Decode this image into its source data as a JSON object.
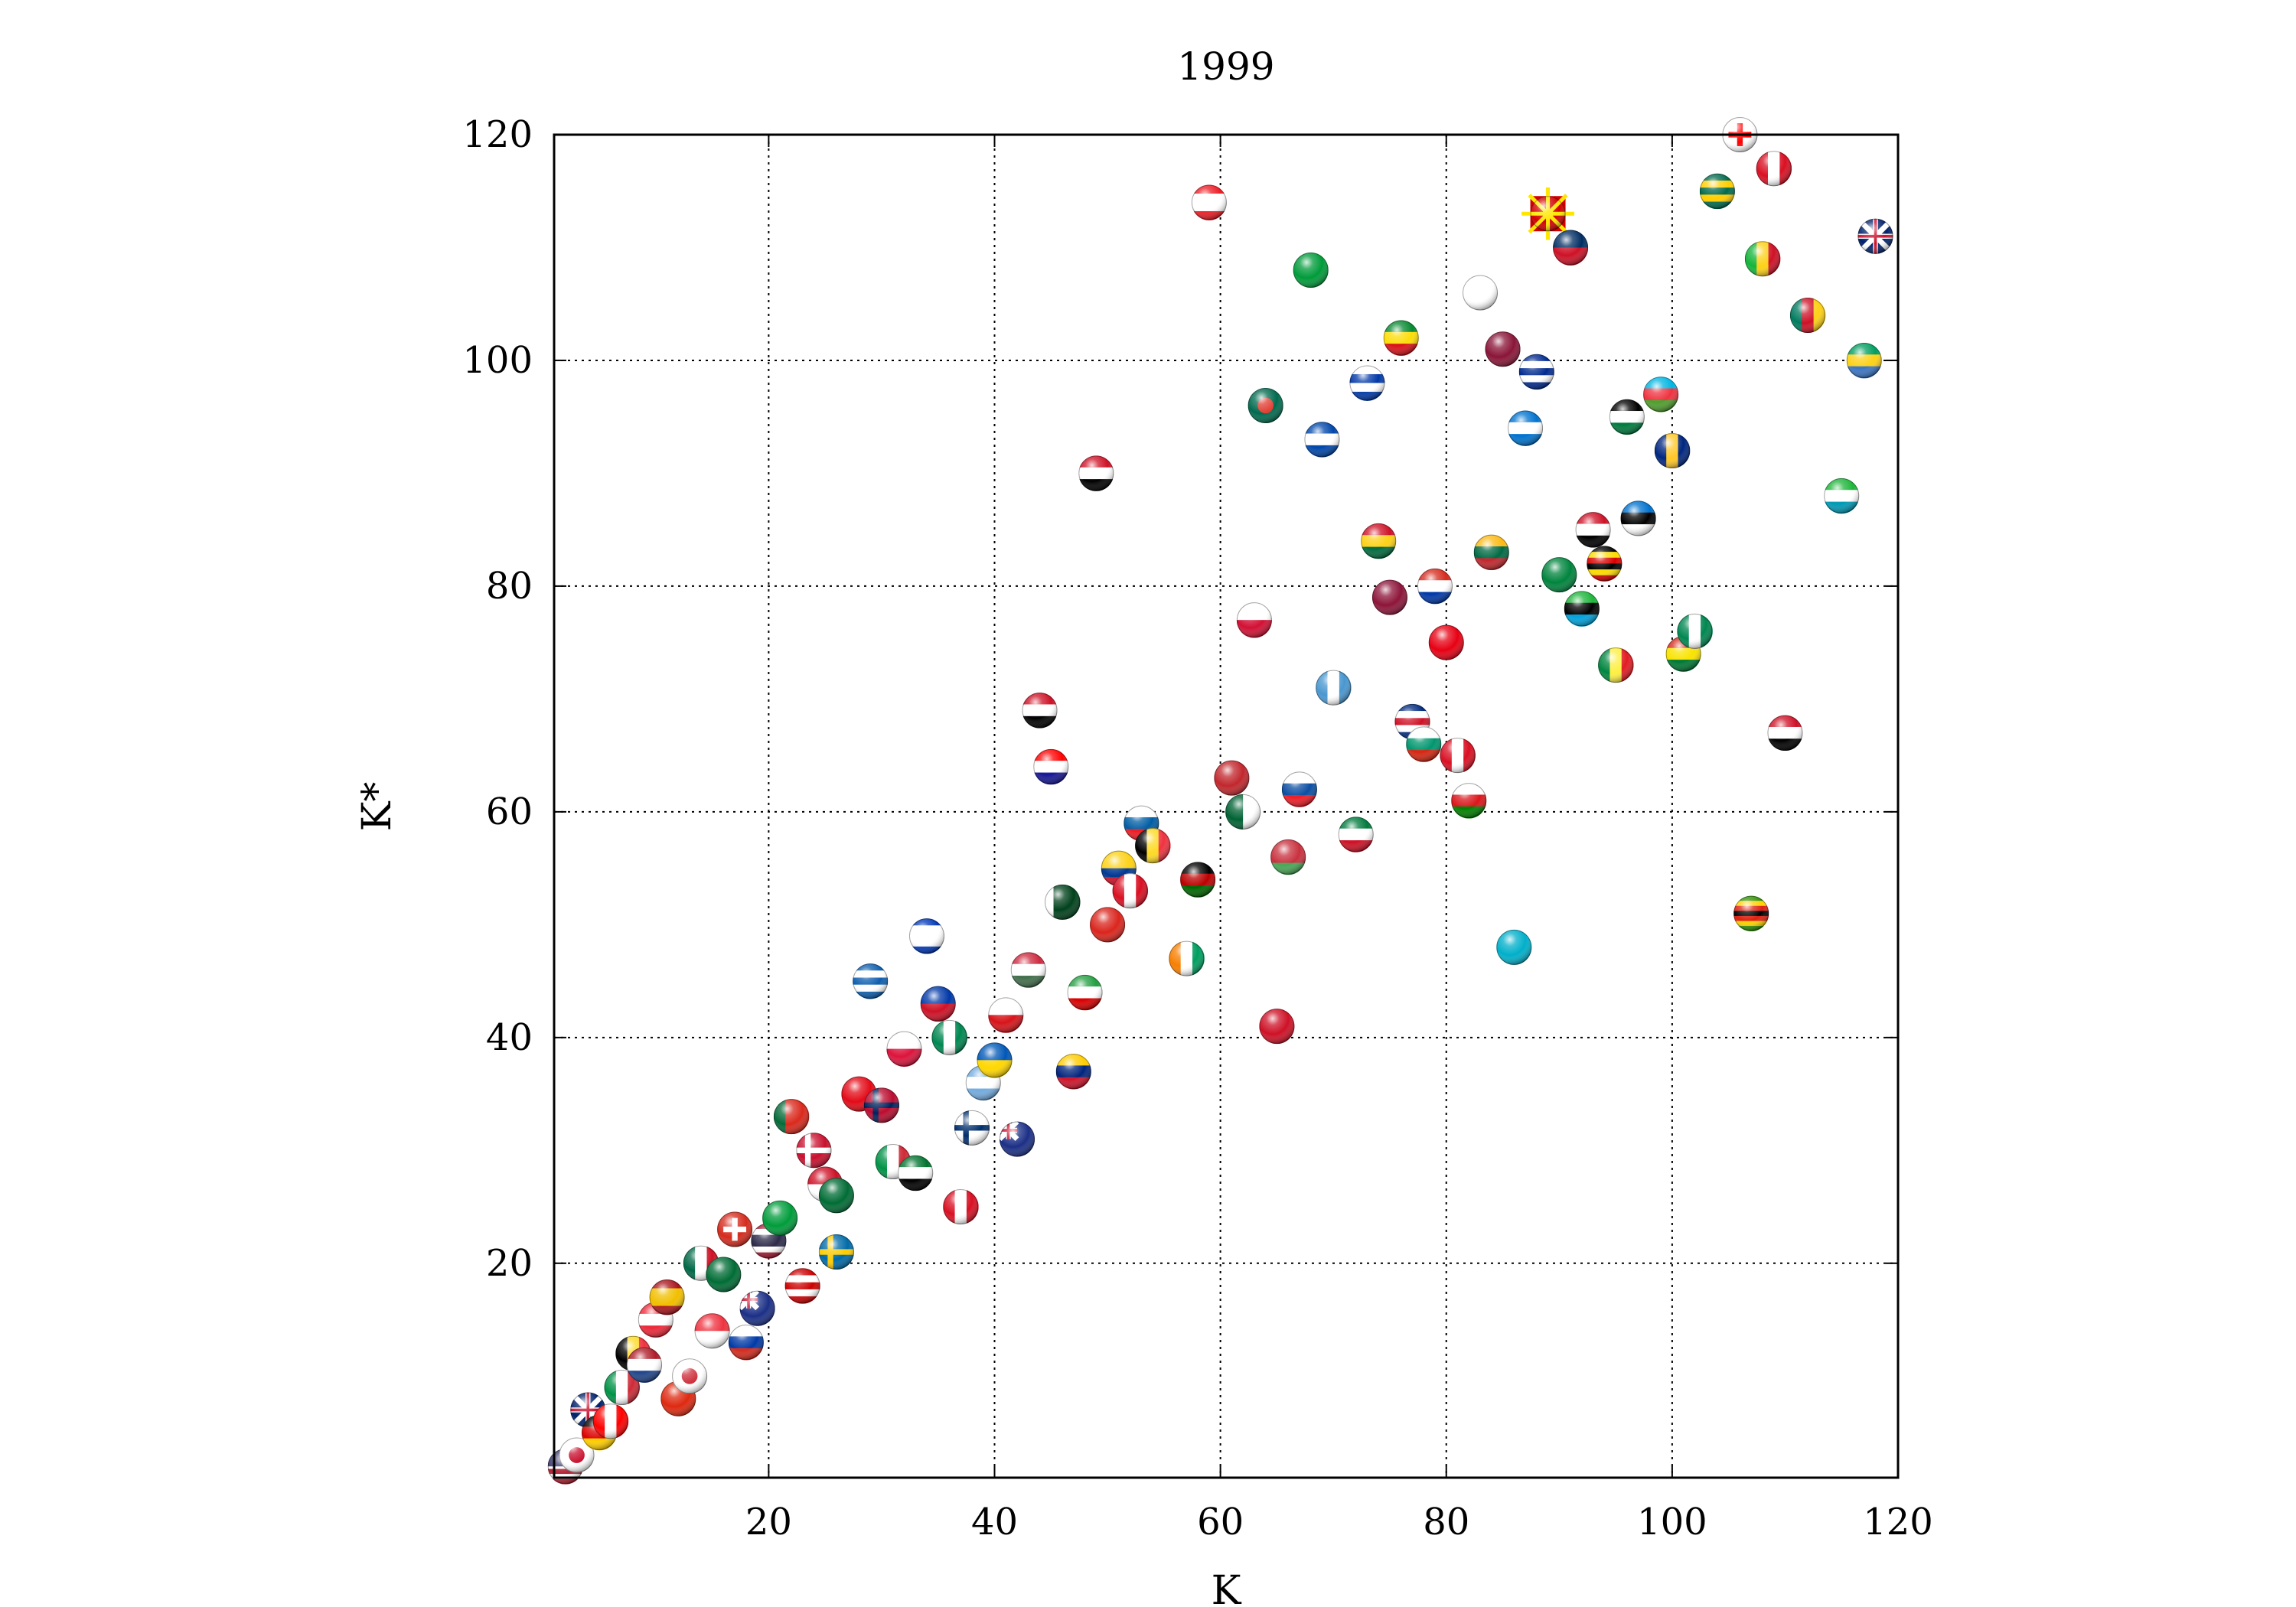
{
  "chart_data": {
    "type": "scatter",
    "title": "1999",
    "xlabel": "K",
    "ylabel": "K*",
    "xlim": [
      1,
      120
    ],
    "ylim": [
      1,
      120
    ],
    "xticks": [
      20,
      40,
      60,
      80,
      100,
      120
    ],
    "yticks": [
      20,
      40,
      60,
      80,
      100,
      120
    ],
    "grid": true,
    "marker": "country flag spheres",
    "points": [
      {
        "x": 2,
        "y": 2,
        "flag": "usa"
      },
      {
        "x": 3,
        "y": 3,
        "flag": "japan"
      },
      {
        "x": 4,
        "y": 7,
        "flag": "uk"
      },
      {
        "x": 5,
        "y": 5,
        "flag": "germany"
      },
      {
        "x": 6,
        "y": 6,
        "flag": "canada"
      },
      {
        "x": 7,
        "y": 9,
        "flag": "italy"
      },
      {
        "x": 8,
        "y": 12,
        "flag": "belgium"
      },
      {
        "x": 9,
        "y": 11,
        "flag": "netherlands"
      },
      {
        "x": 10,
        "y": 15,
        "flag": "austria"
      },
      {
        "x": 11,
        "y": 17,
        "flag": "spain"
      },
      {
        "x": 12,
        "y": 8,
        "flag": "china"
      },
      {
        "x": 13,
        "y": 10,
        "flag": "south-korea"
      },
      {
        "x": 14,
        "y": 20,
        "flag": "mexico"
      },
      {
        "x": 15,
        "y": 14,
        "flag": "singapore"
      },
      {
        "x": 16,
        "y": 19,
        "flag": "saudi-arabia"
      },
      {
        "x": 17,
        "y": 23,
        "flag": "switzerland"
      },
      {
        "x": 18,
        "y": 13,
        "flag": "russia"
      },
      {
        "x": 19,
        "y": 16,
        "flag": "australia"
      },
      {
        "x": 20,
        "y": 22,
        "flag": "thailand"
      },
      {
        "x": 21,
        "y": 24,
        "flag": "brazil"
      },
      {
        "x": 22,
        "y": 33,
        "flag": "portugal"
      },
      {
        "x": 23,
        "y": 18,
        "flag": "malaysia"
      },
      {
        "x": 24,
        "y": 30,
        "flag": "denmark"
      },
      {
        "x": 25,
        "y": 27,
        "flag": "indonesia"
      },
      {
        "x": 26,
        "y": 26,
        "flag": "saudi-arabia"
      },
      {
        "x": 26,
        "y": 21,
        "flag": "sweden"
      },
      {
        "x": 28,
        "y": 35,
        "flag": "turkey"
      },
      {
        "x": 29,
        "y": 45,
        "flag": "greece"
      },
      {
        "x": 30,
        "y": 34,
        "flag": "norway"
      },
      {
        "x": 31,
        "y": 29,
        "flag": "italy"
      },
      {
        "x": 32,
        "y": 39,
        "flag": "poland"
      },
      {
        "x": 33,
        "y": 28,
        "flag": "uae"
      },
      {
        "x": 34,
        "y": 49,
        "flag": "israel"
      },
      {
        "x": 35,
        "y": 43,
        "flag": "philippines"
      },
      {
        "x": 36,
        "y": 40,
        "flag": "nigeria"
      },
      {
        "x": 37,
        "y": 25,
        "flag": "peru"
      },
      {
        "x": 38,
        "y": 32,
        "flag": "finland"
      },
      {
        "x": 39,
        "y": 36,
        "flag": "argentina"
      },
      {
        "x": 40,
        "y": 38,
        "flag": "ukraine"
      },
      {
        "x": 41,
        "y": 42,
        "flag": "czech-republic"
      },
      {
        "x": 42,
        "y": 31,
        "flag": "new-zealand"
      },
      {
        "x": 43,
        "y": 46,
        "flag": "hungary"
      },
      {
        "x": 44,
        "y": 69,
        "flag": "egypt"
      },
      {
        "x": 45,
        "y": 64,
        "flag": "croatia"
      },
      {
        "x": 46,
        "y": 52,
        "flag": "pakistan"
      },
      {
        "x": 47,
        "y": 37,
        "flag": "venezuela"
      },
      {
        "x": 48,
        "y": 44,
        "flag": "iran"
      },
      {
        "x": 49,
        "y": 90,
        "flag": "yemen"
      },
      {
        "x": 50,
        "y": 50,
        "flag": "vietnam"
      },
      {
        "x": 51,
        "y": 55,
        "flag": "colombia"
      },
      {
        "x": 52,
        "y": 53,
        "flag": "peru"
      },
      {
        "x": 53,
        "y": 59,
        "flag": "slovenia"
      },
      {
        "x": 54,
        "y": 57,
        "flag": "belgium"
      },
      {
        "x": 57,
        "y": 47,
        "flag": "ivory-coast"
      },
      {
        "x": 58,
        "y": 54,
        "flag": "kenya"
      },
      {
        "x": 59,
        "y": 114,
        "flag": "lebanon"
      },
      {
        "x": 61,
        "y": 63,
        "flag": "morocco"
      },
      {
        "x": 62,
        "y": 60,
        "flag": "algeria"
      },
      {
        "x": 63,
        "y": 77,
        "flag": "panama"
      },
      {
        "x": 64,
        "y": 96,
        "flag": "bangladesh"
      },
      {
        "x": 65,
        "y": 41,
        "flag": "trinidad-and-tobago"
      },
      {
        "x": 66,
        "y": 56,
        "flag": "belarus"
      },
      {
        "x": 67,
        "y": 62,
        "flag": "slovakia"
      },
      {
        "x": 68,
        "y": 108,
        "flag": "jamaica"
      },
      {
        "x": 69,
        "y": 93,
        "flag": "el-salvador"
      },
      {
        "x": 70,
        "y": 71,
        "flag": "guatemala"
      },
      {
        "x": 72,
        "y": 58,
        "flag": "kuwait"
      },
      {
        "x": 73,
        "y": 98,
        "flag": "uruguay"
      },
      {
        "x": 74,
        "y": 84,
        "flag": "ghana"
      },
      {
        "x": 75,
        "y": 79,
        "flag": "sri-lanka"
      },
      {
        "x": 76,
        "y": 102,
        "flag": "ethiopia"
      },
      {
        "x": 77,
        "y": 68,
        "flag": "costa-rica"
      },
      {
        "x": 78,
        "y": 66,
        "flag": "bulgaria"
      },
      {
        "x": 79,
        "y": 80,
        "flag": "paraguay"
      },
      {
        "x": 80,
        "y": 75,
        "flag": "tunisia"
      },
      {
        "x": 81,
        "y": 65,
        "flag": "peru"
      },
      {
        "x": 82,
        "y": 61,
        "flag": "oman"
      },
      {
        "x": 83,
        "y": 106,
        "flag": "cyprus"
      },
      {
        "x": 84,
        "y": 83,
        "flag": "lithuania"
      },
      {
        "x": 85,
        "y": 101,
        "flag": "qatar"
      },
      {
        "x": 86,
        "y": 48,
        "flag": "kazakhstan"
      },
      {
        "x": 87,
        "y": 94,
        "flag": "honduras"
      },
      {
        "x": 88,
        "y": 99,
        "flag": "cuba"
      },
      {
        "x": 89,
        "y": 113,
        "flag": "macedonia"
      },
      {
        "x": 90,
        "y": 81,
        "flag": "turkmenistan"
      },
      {
        "x": 91,
        "y": 110,
        "flag": "dominican-republic"
      },
      {
        "x": 92,
        "y": 78,
        "flag": "tanzania"
      },
      {
        "x": 93,
        "y": 85,
        "flag": "syria"
      },
      {
        "x": 94,
        "y": 82,
        "flag": "uganda"
      },
      {
        "x": 95,
        "y": 73,
        "flag": "senegal"
      },
      {
        "x": 96,
        "y": 95,
        "flag": "jordan"
      },
      {
        "x": 97,
        "y": 86,
        "flag": "estonia"
      },
      {
        "x": 99,
        "y": 97,
        "flag": "azerbaijan"
      },
      {
        "x": 100,
        "y": 92,
        "flag": "barbados"
      },
      {
        "x": 101,
        "y": 74,
        "flag": "bolivia"
      },
      {
        "x": 102,
        "y": 76,
        "flag": "nigeria"
      },
      {
        "x": 104,
        "y": 115,
        "flag": "togo"
      },
      {
        "x": 106,
        "y": 120,
        "flag": "georgia"
      },
      {
        "x": 107,
        "y": 51,
        "flag": "zimbabwe"
      },
      {
        "x": 108,
        "y": 109,
        "flag": "mali"
      },
      {
        "x": 109,
        "y": 117,
        "flag": "peru"
      },
      {
        "x": 110,
        "y": 67,
        "flag": "iraq"
      },
      {
        "x": 112,
        "y": 104,
        "flag": "cameroon"
      },
      {
        "x": 115,
        "y": 88,
        "flag": "uzbekistan"
      },
      {
        "x": 117,
        "y": 100,
        "flag": "gabon"
      },
      {
        "x": 118,
        "y": 111,
        "flag": "iceland"
      }
    ]
  }
}
